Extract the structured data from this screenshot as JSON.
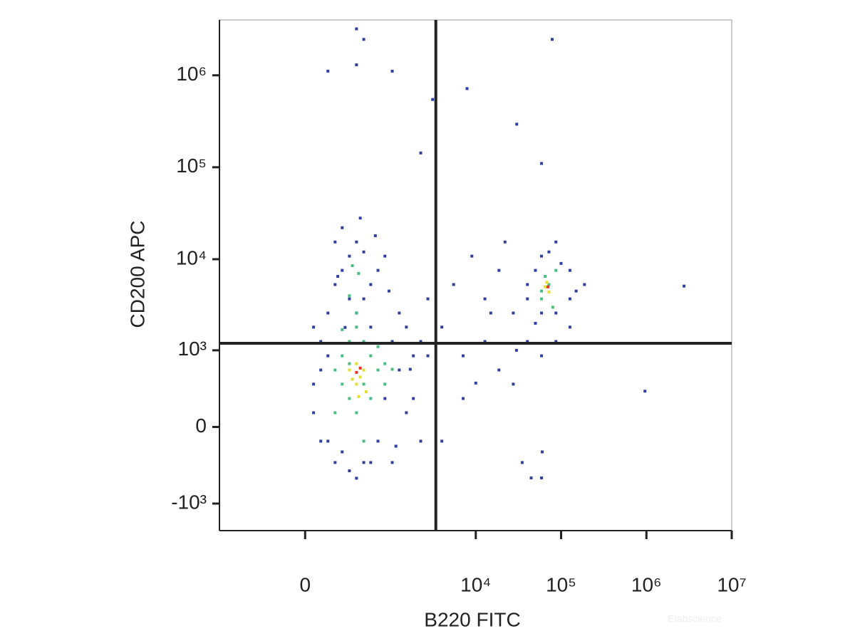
{
  "chart_data": {
    "type": "scatter",
    "x_label": "B220 FITC",
    "y_label": "CD200 APC",
    "watermark": "Elabscience",
    "xscale": "asinh",
    "yscale": "asinh",
    "xlim": [
      -1000,
      10000000
    ],
    "ylim": [
      -2000,
      4000000
    ],
    "xticks": [
      0,
      {
        "value": 10000,
        "label": "10⁴"
      },
      {
        "value": 100000,
        "label": "10⁵"
      },
      {
        "value": 1000000,
        "label": "10⁶"
      },
      {
        "value": 10000000,
        "label": "10⁷"
      }
    ],
    "yticks": [
      {
        "value": -1000,
        "label": "-10³"
      },
      0,
      {
        "value": 1000,
        "label": "10³"
      },
      {
        "value": 10000,
        "label": "10⁴"
      },
      {
        "value": 100000,
        "label": "10⁵"
      },
      {
        "value": 1000000,
        "label": "10⁶"
      }
    ],
    "gates": {
      "x": 3400,
      "y": 1200
    },
    "series": [
      {
        "color": "#2f3f9f",
        "x": [
          46,
          87,
          131,
          180,
          235,
          300,
          375,
          466,
          570,
          700,
          850,
          1040,
          1260,
          1530,
          1850,
          2260,
          180,
          300,
          466,
          87,
          46,
          131,
          235,
          375,
          570,
          850,
          1260,
          1530,
          700,
          300,
          466,
          131,
          87,
          46,
          235,
          375,
          570,
          1040,
          1850,
          2260,
          2740,
          2740,
          180,
          950,
          650,
          420,
          260,
          1700,
          1150,
          200,
          4000,
          7100,
          12800,
          18700,
          27500,
          40300,
          4000,
          7100,
          12800,
          18700,
          27500,
          40300,
          59000,
          87000,
          127000,
          5500,
          9000,
          22000,
          35000,
          15000,
          60000,
          30000,
          10000,
          50000,
          40300,
          59000,
          72000,
          87000,
          127000,
          188000,
          127000,
          59000,
          87000,
          50000,
          100000,
          150000,
          375,
          466,
          131,
          375,
          1040,
          7900,
          30200,
          78600,
          59000,
          2260,
          3120,
          2760000,
          961000,
          44600,
          59000
        ],
        "y": [
          387,
          -109,
          2590,
          5300,
          7560,
          10800,
          15400,
          3700,
          1815,
          -109,
          232,
          -304,
          588,
          109,
          865,
          1257,
          -304,
          -400,
          -304,
          1257,
          1815,
          -109,
          22000,
          2590,
          5300,
          10800,
          2590,
          1815,
          7560,
          3700,
          12000,
          865,
          588,
          109,
          -200,
          -500,
          -304,
          1257,
          232,
          -109,
          865,
          3700,
          15400,
          4500,
          18000,
          28000,
          1800,
          600,
          -150,
          6500,
          1815,
          865,
          3700,
          588,
          2590,
          5300,
          -109,
          232,
          1257,
          7560,
          387,
          1257,
          865,
          1257,
          1815,
          5300,
          10800,
          15400,
          -304,
          2590,
          -200,
          1000,
          400,
          2000,
          3700,
          10800,
          12000,
          2590,
          7560,
          5300,
          3700,
          2590,
          15400,
          7560,
          9000,
          4500,
          3200000,
          2460000,
          1110000,
          1300000,
          1110000,
          717000,
          294000,
          2460000,
          110000,
          143000,
          546000,
          5100,
          306,
          -496,
          -496
        ]
      },
      {
        "color": "#45c07e",
        "x": [
          180,
          235,
          300,
          375,
          466,
          570,
          700,
          850,
          300,
          235,
          466,
          375,
          570,
          180,
          700,
          850,
          300,
          466,
          1040,
          235,
          375,
          300,
          400,
          330,
          59000,
          72000,
          87000,
          65000,
          80000,
          59000
        ],
        "y": [
          588,
          865,
          232,
          109,
          387,
          865,
          588,
          387,
          1257,
          387,
          1257,
          1815,
          232,
          109,
          1100,
          700,
          700,
          -109,
          600,
          1700,
          2600,
          4000,
          7000,
          8500,
          3700,
          5300,
          7560,
          6500,
          3000,
          4500
        ]
      },
      {
        "color": "#e4e12e",
        "x": [
          300,
          375,
          466,
          375,
          420,
          330,
          500,
          400,
          65000,
          72000,
          68000
        ],
        "y": [
          588,
          387,
          588,
          700,
          480,
          450,
          300,
          250,
          5000,
          4400,
          5600
        ]
      },
      {
        "color": "#e8302a",
        "x": [
          375,
          420,
          70000
        ],
        "y": [
          550,
          620,
          5000
        ]
      }
    ]
  }
}
